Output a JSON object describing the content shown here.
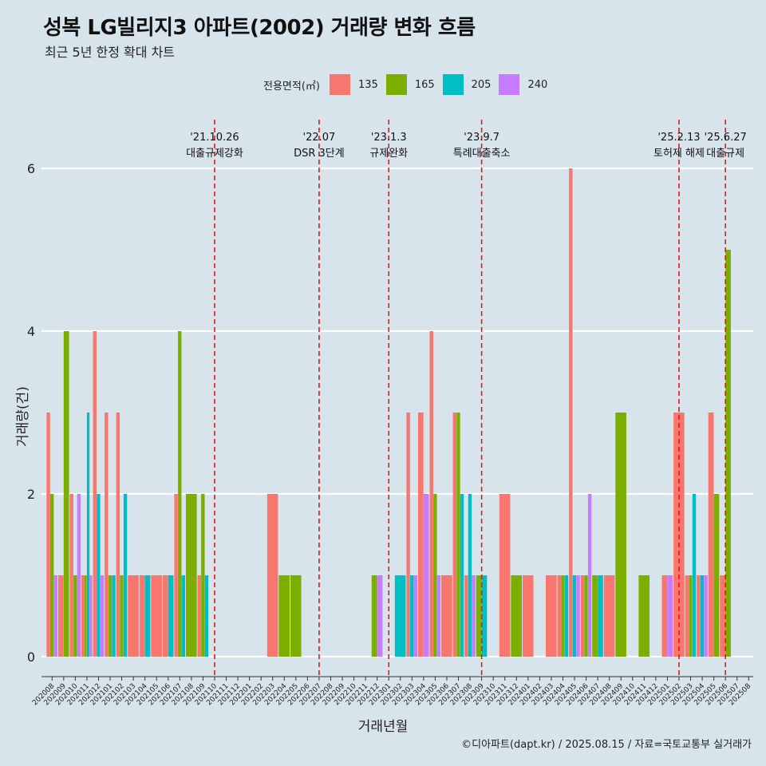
{
  "header": {
    "title": "성복 LG빌리지3 아파트(2002) 거래량 변화 흐름",
    "subtitle": "최근 5년 한정 확대 차트"
  },
  "legend": {
    "title": "전용면적(㎡)",
    "items": [
      {
        "label": "135",
        "color": "#F8766D"
      },
      {
        "label": "165",
        "color": "#7CAE00"
      },
      {
        "label": "205",
        "color": "#00BFC4"
      },
      {
        "label": "240",
        "color": "#C77CFF"
      }
    ]
  },
  "caption": "©디아파트(dapt.kr) / 2025.08.15 / 자료=국토교통부 실거래가",
  "chart_data": {
    "type": "bar",
    "xlabel": "거래년월",
    "ylabel": "거래량(건)",
    "ylim": [
      0,
      6
    ],
    "yticks": [
      0,
      2,
      4,
      6
    ],
    "grid": true,
    "legend_position": "top",
    "categories": [
      "202008",
      "202009",
      "202010",
      "202011",
      "202012",
      "202101",
      "202102",
      "202103",
      "202104",
      "202105",
      "202106",
      "202107",
      "202108",
      "202109",
      "202110",
      "202111",
      "202112",
      "202201",
      "202202",
      "202203",
      "202204",
      "202205",
      "202206",
      "202207",
      "202208",
      "202209",
      "202210",
      "202211",
      "202212",
      "202301",
      "202302",
      "202303",
      "202304",
      "202305",
      "202306",
      "202307",
      "202308",
      "202309",
      "202310",
      "202311",
      "202312",
      "202401",
      "202402",
      "202403",
      "202404",
      "202405",
      "202406",
      "202407",
      "202408",
      "202409",
      "202410",
      "202411",
      "202412",
      "202501",
      "202502",
      "202503",
      "202504",
      "202505",
      "202506",
      "202507",
      "202508"
    ],
    "series": [
      {
        "name": "135",
        "color": "#F8766D",
        "values": [
          3,
          1,
          2,
          1,
          4,
          3,
          3,
          1,
          1,
          1,
          1,
          2,
          0,
          1,
          0,
          0,
          0,
          0,
          0,
          2,
          0,
          0,
          0,
          0,
          0,
          0,
          0,
          0,
          0,
          0,
          0,
          3,
          3,
          4,
          1,
          3,
          1,
          0,
          0,
          2,
          0,
          1,
          0,
          1,
          1,
          6,
          1,
          0,
          1,
          0,
          0,
          0,
          0,
          1,
          3,
          1,
          1,
          3,
          1,
          0,
          0
        ]
      },
      {
        "name": "165",
        "color": "#7CAE00",
        "values": [
          2,
          4,
          1,
          1,
          0,
          1,
          1,
          0,
          0,
          0,
          0,
          4,
          2,
          2,
          0,
          0,
          0,
          0,
          0,
          0,
          1,
          1,
          0,
          0,
          0,
          0,
          0,
          0,
          1,
          0,
          0,
          0,
          0,
          2,
          0,
          3,
          0,
          1,
          0,
          0,
          1,
          0,
          0,
          0,
          1,
          0,
          1,
          1,
          0,
          3,
          0,
          1,
          0,
          0,
          0,
          1,
          0,
          2,
          5,
          0,
          0
        ]
      },
      {
        "name": "205",
        "color": "#00BFC4",
        "values": [
          0,
          0,
          0,
          3,
          2,
          1,
          2,
          0,
          1,
          0,
          1,
          1,
          0,
          1,
          0,
          0,
          0,
          0,
          0,
          0,
          0,
          0,
          0,
          0,
          0,
          0,
          0,
          0,
          0,
          0,
          1,
          1,
          0,
          0,
          0,
          2,
          2,
          1,
          0,
          0,
          0,
          0,
          0,
          0,
          1,
          1,
          0,
          1,
          0,
          0,
          0,
          0,
          0,
          0,
          0,
          2,
          1,
          0,
          0,
          0,
          0
        ]
      },
      {
        "name": "240",
        "color": "#C77CFF",
        "values": [
          1,
          0,
          2,
          1,
          1,
          0,
          0,
          0,
          0,
          0,
          0,
          0,
          0,
          0,
          0,
          0,
          0,
          0,
          0,
          0,
          0,
          0,
          0,
          0,
          0,
          0,
          0,
          0,
          1,
          0,
          0,
          1,
          2,
          1,
          0,
          0,
          1,
          0,
          0,
          0,
          0,
          0,
          0,
          0,
          0,
          1,
          2,
          0,
          0,
          0,
          0,
          0,
          0,
          1,
          0,
          0,
          1,
          0,
          0,
          0,
          0
        ]
      }
    ],
    "annotations": [
      {
        "x": "202110",
        "date": "'21.10.26",
        "label": "대출규제강화"
      },
      {
        "x": "202207",
        "date": "'22.07",
        "label": "DSR 3단계"
      },
      {
        "x": "202301",
        "date": "'23.1.3",
        "label": "규제완화"
      },
      {
        "x": "202309",
        "date": "'23.9.7",
        "label": "특례대출축소"
      },
      {
        "x": "202502",
        "date": "'25.2.13",
        "label": "토허제 해제"
      },
      {
        "x": "202506",
        "date": "'25.6.27",
        "label": "대출규제"
      }
    ]
  }
}
